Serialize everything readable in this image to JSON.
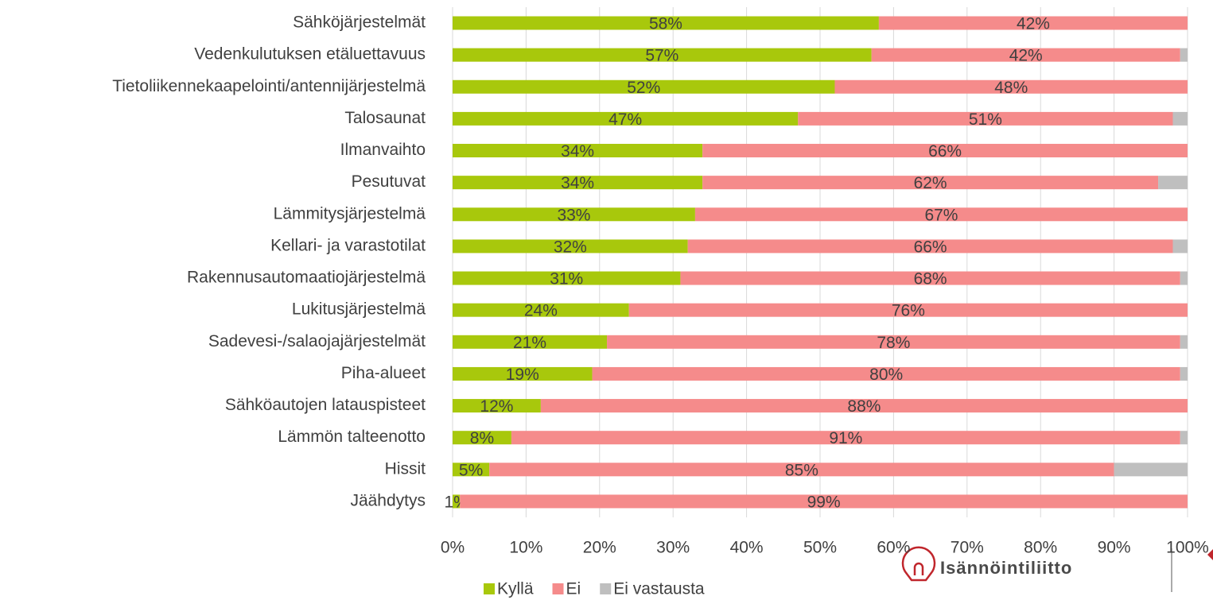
{
  "chart_data": {
    "type": "stacked_barh",
    "categories": [
      "Sähköjärjestelmät",
      "Vedenkulutuksen etäluettavuus",
      "Tietoliikennekaapelointi/antennijärjestelmä",
      "Talosaunat",
      "Ilmanvaihto",
      "Pesutuvat",
      "Lämmitysjärjestelmä",
      "Kellari- ja varastotilat",
      "Rakennusautomaatiojärjestelmä",
      "Lukitusjärjestelmä",
      "Sadevesi-/salaojajärjestelmät",
      "Piha-alueet",
      "Sähköautojen latauspisteet",
      "Lämmön talteenotto",
      "Hissit",
      "Jäähdytys"
    ],
    "series": [
      {
        "name": "Kyllä",
        "color": "#a8c80c",
        "values": [
          58,
          57,
          52,
          47,
          34,
          34,
          33,
          32,
          31,
          24,
          21,
          19,
          12,
          8,
          5,
          1
        ],
        "value_labels": [
          "58%",
          "57%",
          "52%",
          "47%",
          "34%",
          "34%",
          "33%",
          "32%",
          "31%",
          "24%",
          "21%",
          "19%",
          "12%",
          "8%",
          "5%",
          "1%"
        ]
      },
      {
        "name": "Ei",
        "color": "#f58b8b",
        "values": [
          42,
          42,
          48,
          51,
          66,
          62,
          67,
          66,
          68,
          76,
          78,
          80,
          88,
          91,
          85,
          99
        ],
        "value_labels": [
          "42%",
          "42%",
          "48%",
          "51%",
          "66%",
          "62%",
          "67%",
          "66%",
          "68%",
          "76%",
          "78%",
          "80%",
          "88%",
          "91%",
          "85%",
          "99%"
        ]
      },
      {
        "name": "Ei vastausta",
        "color": "#bfbfbf",
        "values": [
          0,
          1,
          0,
          2,
          0,
          4,
          0,
          2,
          1,
          0,
          1,
          1,
          0,
          1,
          10,
          0
        ]
      }
    ],
    "xlim": [
      0,
      100
    ],
    "xticks": [
      {
        "value": 0,
        "label": "0%"
      },
      {
        "value": 10,
        "label": "10%"
      },
      {
        "value": 20,
        "label": "20%"
      },
      {
        "value": 30,
        "label": "30%"
      },
      {
        "value": 40,
        "label": "40%"
      },
      {
        "value": 50,
        "label": "50%"
      },
      {
        "value": 60,
        "label": "60%"
      },
      {
        "value": 70,
        "label": "70%"
      },
      {
        "value": 80,
        "label": "80%"
      },
      {
        "value": 90,
        "label": "90%"
      },
      {
        "value": 100,
        "label": "100%"
      }
    ],
    "grid": true,
    "legend": "bottom"
  },
  "logo": {
    "text": "Isännöintiliitto"
  }
}
